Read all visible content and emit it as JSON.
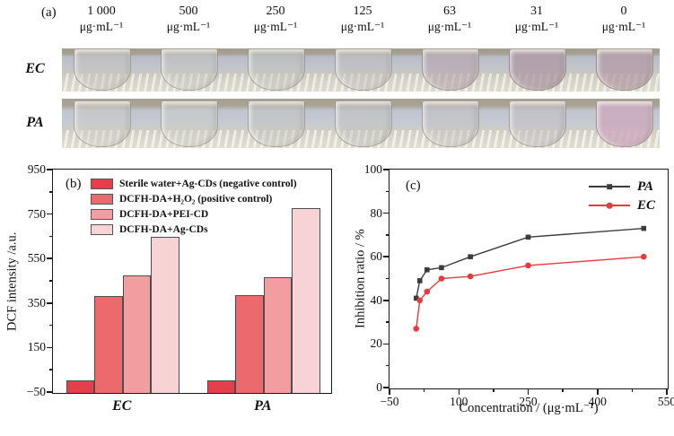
{
  "panel_a": {
    "label": "(a)",
    "columns": [
      {
        "value": "1 000",
        "unit": "μg·mL⁻¹"
      },
      {
        "value": "500",
        "unit": "μg·mL⁻¹"
      },
      {
        "value": "250",
        "unit": "μg·mL⁻¹"
      },
      {
        "value": "125",
        "unit": "μg·mL⁻¹"
      },
      {
        "value": "63",
        "unit": "μg·mL⁻¹"
      },
      {
        "value": "31",
        "unit": "μg·mL⁻¹"
      },
      {
        "value": "0",
        "unit": "μg·mL⁻¹"
      }
    ],
    "rows": [
      {
        "label": "EC",
        "tube_colors": [
          "rgba(197,196,189,0.45)",
          "rgba(201,200,193,0.40)",
          "rgba(193,192,187,0.42)",
          "rgba(192,191,188,0.45)",
          "rgba(181,164,172,0.60)",
          "rgba(172,151,162,0.75)",
          "rgba(177,153,164,0.72)"
        ]
      },
      {
        "label": "PA",
        "tube_colors": [
          "rgba(204,203,196,0.42)",
          "rgba(206,205,198,0.38)",
          "rgba(196,195,189,0.42)",
          "rgba(194,193,189,0.45)",
          "rgba(196,194,192,0.45)",
          "rgba(196,189,193,0.50)",
          "rgba(203,170,190,0.85)"
        ]
      }
    ]
  },
  "chart_data": [
    {
      "type": "bar",
      "panel": "(b)",
      "categories": [
        "EC",
        "PA"
      ],
      "series": [
        {
          "name": "Sterile water+Ag-CDs (negative control)",
          "color": "#e4404a",
          "values": [
            5,
            8
          ]
        },
        {
          "name": "DCFH-DA+H₂O₂ (positive control)",
          "color": "#ec6a6e",
          "values": [
            385,
            390
          ]
        },
        {
          "name": "DCFH-DA+PEI-CD",
          "color": "#f29da0",
          "values": [
            480,
            470
          ]
        },
        {
          "name": "DCFH-DA+Ag-CDs",
          "color": "#f8d3d6",
          "values": [
            650,
            780
          ]
        }
      ],
      "ylabel": "DCF intensity /a.u.",
      "ylim": [
        -50,
        950
      ],
      "yticks": [
        950,
        750,
        550,
        350,
        150,
        -50
      ],
      "bar_border_color": "#4d4d4d",
      "legend_position": "top-left",
      "grid": false
    },
    {
      "type": "line",
      "panel": "(c)",
      "x": [
        7.8,
        15.6,
        31.2,
        62.5,
        125,
        250,
        500
      ],
      "series": [
        {
          "name": "PA",
          "color": "#3c3c3c",
          "marker": "square",
          "values": [
            41,
            49,
            54,
            55,
            60,
            69,
            73
          ]
        },
        {
          "name": "EC",
          "color": "#e8393c",
          "marker": "circle",
          "values": [
            27,
            40,
            44,
            50,
            51,
            56,
            60
          ]
        }
      ],
      "xlabel": "Concentration / (μg·mL⁻¹)",
      "ylabel": "Inhibition ratio / %",
      "xlim": [
        -50,
        550
      ],
      "xticks": [
        -50,
        100,
        250,
        400,
        550
      ],
      "ylim": [
        0,
        100
      ],
      "yticks": [
        0,
        20,
        40,
        60,
        80,
        100
      ],
      "legend_position": "top-right",
      "grid": false
    }
  ]
}
